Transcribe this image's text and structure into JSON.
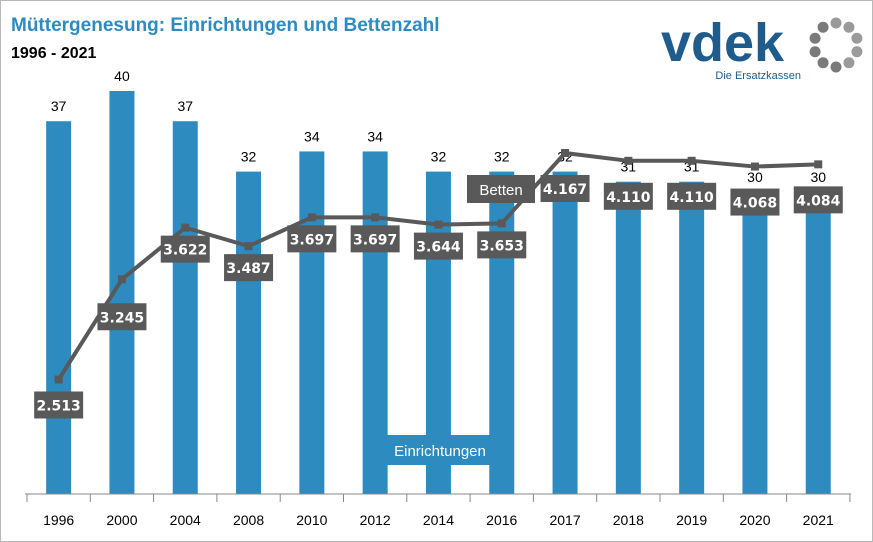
{
  "header": {
    "title": "Müttergenesung: Einrichtungen und Bettenzahl",
    "subtitle": "1996 - 2021"
  },
  "logo": {
    "wordmark": "vdek",
    "tagline": "Die Ersatzkassen",
    "icon": "ring-of-dots-icon",
    "color": "#1f5c8b"
  },
  "colors": {
    "bars": "#2e8bc0",
    "line": "#595959",
    "label_box": "#595959"
  },
  "chart_data": {
    "type": "bar",
    "title": "Müttergenesung: Einrichtungen und Bettenzahl",
    "subtitle": "1996 - 2021",
    "categories": [
      "1996",
      "2000",
      "2004",
      "2008",
      "2010",
      "2012",
      "2014",
      "2016",
      "2017",
      "2018",
      "2019",
      "2020",
      "2021"
    ],
    "series": [
      {
        "name": "Einrichtungen",
        "type": "bar",
        "values": [
          37,
          40,
          37,
          32,
          34,
          34,
          32,
          32,
          32,
          31,
          31,
          30,
          30
        ],
        "labels": [
          "37",
          "40",
          "37",
          "32",
          "34",
          "34",
          "32",
          "32",
          "32",
          "31",
          "31",
          "30",
          "30"
        ]
      },
      {
        "name": "Betten",
        "type": "line",
        "values": [
          2513,
          3245,
          3622,
          3487,
          3697,
          3697,
          3644,
          3653,
          4167,
          4110,
          4110,
          4068,
          4084
        ],
        "labels": [
          "2.513",
          "3.245",
          "3.622",
          "3.487",
          "3.697",
          "3.697",
          "3.644",
          "3.653",
          "4.167",
          "4.110",
          "4.110",
          "4.068",
          "4.084"
        ]
      }
    ],
    "grid": false,
    "legend": "inline labels"
  }
}
